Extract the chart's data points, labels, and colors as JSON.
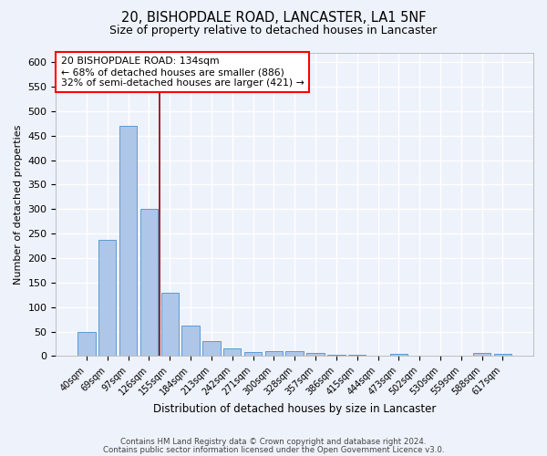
{
  "title1": "20, BISHOPDALE ROAD, LANCASTER, LA1 5NF",
  "title2": "Size of property relative to detached houses in Lancaster",
  "xlabel": "Distribution of detached houses by size in Lancaster",
  "ylabel": "Number of detached properties",
  "categories": [
    "40sqm",
    "69sqm",
    "97sqm",
    "126sqm",
    "155sqm",
    "184sqm",
    "213sqm",
    "242sqm",
    "271sqm",
    "300sqm",
    "328sqm",
    "357sqm",
    "386sqm",
    "415sqm",
    "444sqm",
    "473sqm",
    "502sqm",
    "530sqm",
    "559sqm",
    "588sqm",
    "617sqm"
  ],
  "values": [
    50,
    237,
    470,
    300,
    130,
    62,
    30,
    16,
    8,
    10,
    10,
    7,
    3,
    3,
    0,
    5,
    0,
    0,
    0,
    7,
    5
  ],
  "bar_color": "#aec6e8",
  "bar_edge_color": "#5b9bd5",
  "vline_color": "#8B0000",
  "vline_index": 3.5,
  "annotation_text": "20 BISHOPDALE ROAD: 134sqm\n← 68% of detached houses are smaller (886)\n32% of semi-detached houses are larger (421) →",
  "annotation_box_color": "white",
  "annotation_box_edge": "red",
  "ylim": [
    0,
    620
  ],
  "yticks": [
    0,
    50,
    100,
    150,
    200,
    250,
    300,
    350,
    400,
    450,
    500,
    550,
    600
  ],
  "background_color": "#eef2fa",
  "grid_color": "white",
  "footer_line1": "Contains HM Land Registry data © Crown copyright and database right 2024.",
  "footer_line2": "Contains public sector information licensed under the Open Government Licence v3.0."
}
